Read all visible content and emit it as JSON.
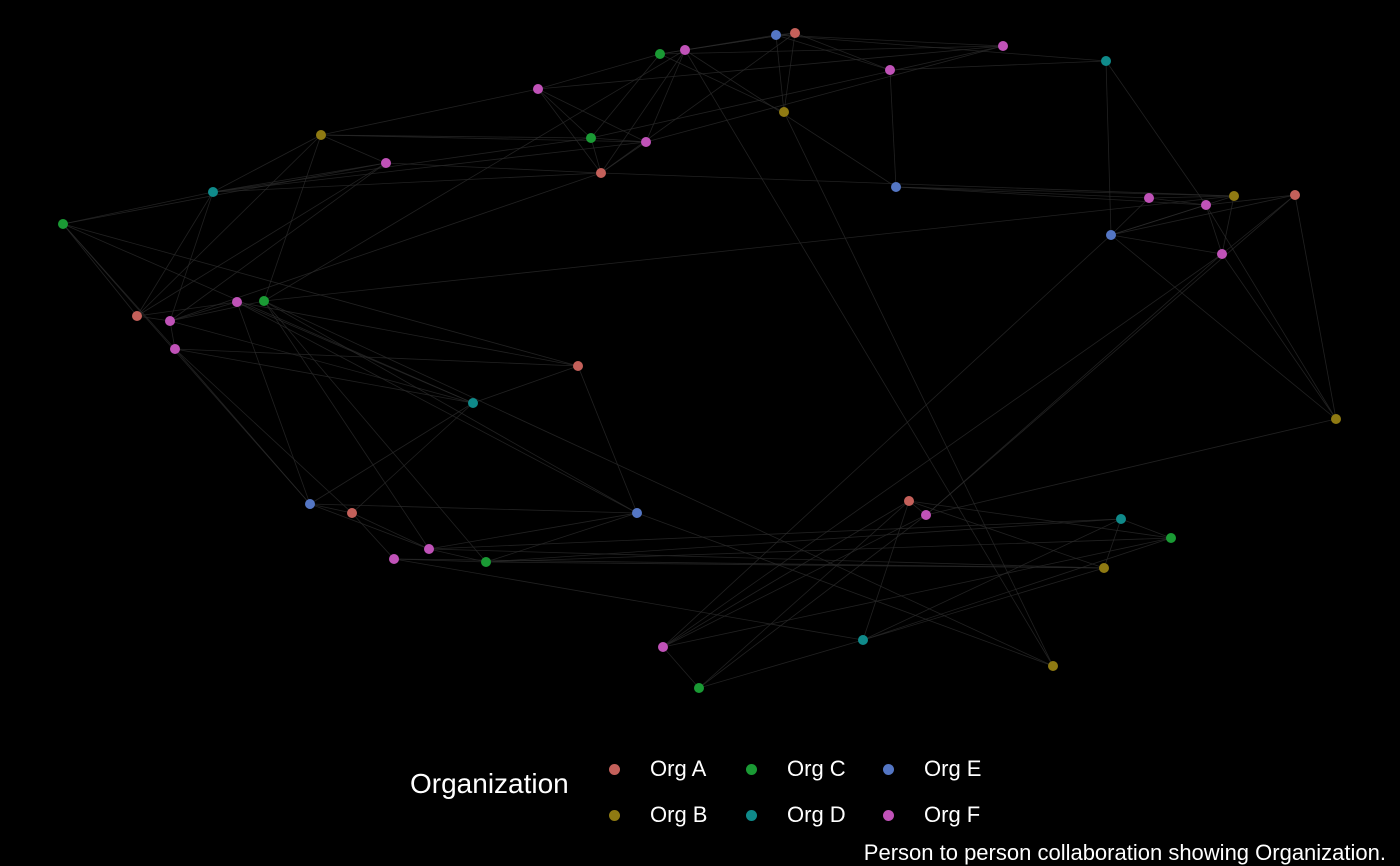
{
  "legend": {
    "title": "Organization",
    "items": [
      {
        "label": "Org A",
        "color": "#c4605a"
      },
      {
        "label": "Org C",
        "color": "#1a9a34"
      },
      {
        "label": "Org E",
        "color": "#5476c4"
      },
      {
        "label": "Org B",
        "color": "#8f7a12"
      },
      {
        "label": "Org D",
        "color": "#0f8a8a"
      },
      {
        "label": "Org F",
        "color": "#c052b8"
      }
    ]
  },
  "caption": "Person to person collaboration showing Organization.",
  "org_colors": {
    "Org A": "#c4605a",
    "Org B": "#8f7a12",
    "Org C": "#1a9a34",
    "Org D": "#0f8a8a",
    "Org E": "#5476c4",
    "Org F": "#c052b8"
  },
  "node_orgs": [
    "Org E",
    "Org A",
    "Org F",
    "Org C",
    "Org F",
    "Org D",
    "Org F",
    "Org B",
    "Org F",
    "Org C",
    "Org F",
    "Org A",
    "Org B",
    "Org F",
    "Org D",
    "Org C",
    "Org E",
    "Org F",
    "Org F",
    "Org B",
    "Org A",
    "Org E",
    "Org F",
    "Org B",
    "Org A",
    "Org F",
    "Org C",
    "Org F",
    "Org F",
    "Org A",
    "Org D",
    "Org E",
    "Org A",
    "Org E",
    "Org C",
    "Org F",
    "Org F",
    "Org D",
    "Org C",
    "Org B",
    "Org D",
    "Org C",
    "Org F",
    "Org A",
    "Org F",
    "Org B"
  ],
  "edges": [
    [
      0,
      1
    ],
    [
      0,
      3
    ],
    [
      0,
      4
    ],
    [
      0,
      6
    ],
    [
      0,
      7
    ],
    [
      0,
      5
    ],
    [
      1,
      3
    ],
    [
      1,
      6
    ],
    [
      1,
      7
    ],
    [
      1,
      11
    ],
    [
      3,
      4
    ],
    [
      3,
      8
    ],
    [
      3,
      9
    ],
    [
      3,
      7
    ],
    [
      4,
      8
    ],
    [
      4,
      9
    ],
    [
      4,
      10
    ],
    [
      6,
      5
    ],
    [
      6,
      16
    ],
    [
      5,
      18
    ],
    [
      5,
      21
    ],
    [
      8,
      12
    ],
    [
      8,
      9
    ],
    [
      8,
      11
    ],
    [
      8,
      10
    ],
    [
      9,
      11
    ],
    [
      9,
      12
    ],
    [
      9,
      10
    ],
    [
      9,
      14
    ],
    [
      10,
      12
    ],
    [
      10,
      11
    ],
    [
      10,
      14
    ],
    [
      11,
      13
    ],
    [
      11,
      14
    ],
    [
      11,
      19
    ],
    [
      11,
      25
    ],
    [
      12,
      14
    ],
    [
      12,
      13
    ],
    [
      12,
      24
    ],
    [
      14,
      15
    ],
    [
      14,
      13
    ],
    [
      14,
      25
    ],
    [
      14,
      24
    ],
    [
      15,
      13
    ],
    [
      15,
      24
    ],
    [
      13,
      24
    ],
    [
      13,
      25
    ],
    [
      15,
      29
    ],
    [
      15,
      30
    ],
    [
      15,
      28
    ],
    [
      15,
      31
    ],
    [
      24,
      25
    ],
    [
      24,
      27
    ],
    [
      25,
      27
    ],
    [
      25,
      26
    ],
    [
      25,
      28
    ],
    [
      25,
      30
    ],
    [
      27,
      29
    ],
    [
      27,
      30
    ],
    [
      27,
      31
    ],
    [
      28,
      29
    ],
    [
      28,
      30
    ],
    [
      28,
      31
    ],
    [
      28,
      32
    ],
    [
      29,
      33
    ],
    [
      29,
      30
    ],
    [
      30,
      31
    ],
    [
      30,
      32
    ],
    [
      31,
      33
    ],
    [
      31,
      32
    ],
    [
      31,
      35
    ],
    [
      32,
      35
    ],
    [
      32,
      36
    ],
    [
      33,
      34
    ],
    [
      33,
      35
    ],
    [
      34,
      35
    ],
    [
      34,
      36
    ],
    [
      34,
      37
    ],
    [
      34,
      38
    ],
    [
      34,
      39
    ],
    [
      35,
      37
    ],
    [
      35,
      39
    ],
    [
      36,
      39
    ],
    [
      36,
      40
    ],
    [
      37,
      38
    ],
    [
      37,
      39
    ],
    [
      37,
      40
    ],
    [
      38,
      40
    ],
    [
      39,
      40
    ],
    [
      40,
      41
    ],
    [
      40,
      43
    ],
    [
      16,
      17
    ],
    [
      16,
      18
    ],
    [
      16,
      19
    ],
    [
      17,
      18
    ],
    [
      17,
      19
    ],
    [
      17,
      21
    ],
    [
      18,
      21
    ],
    [
      18,
      22
    ],
    [
      18,
      23
    ],
    [
      18,
      20
    ],
    [
      19,
      21
    ],
    [
      19,
      22
    ],
    [
      21,
      22
    ],
    [
      21,
      23
    ],
    [
      22,
      23
    ],
    [
      20,
      21
    ],
    [
      20,
      22
    ],
    [
      20,
      23
    ],
    [
      20,
      44
    ],
    [
      22,
      44
    ],
    [
      23,
      44
    ],
    [
      21,
      42
    ],
    [
      44,
      42
    ],
    [
      44,
      41
    ],
    [
      42,
      41
    ],
    [
      42,
      43
    ],
    [
      42,
      38
    ],
    [
      41,
      43
    ],
    [
      43,
      38
    ],
    [
      43,
      39
    ],
    [
      26,
      33
    ],
    [
      26,
      34
    ],
    [
      26,
      35
    ],
    [
      26,
      19
    ],
    [
      2,
      11
    ],
    [
      2,
      26
    ],
    [
      2,
      10
    ],
    [
      1,
      2
    ],
    [
      2,
      16
    ],
    [
      45,
      26
    ],
    [
      45,
      33
    ],
    [
      45,
      2
    ],
    [
      45,
      7
    ],
    [
      22,
      42
    ],
    [
      44,
      43
    ],
    [
      12,
      26
    ],
    [
      27,
      33
    ]
  ]
}
